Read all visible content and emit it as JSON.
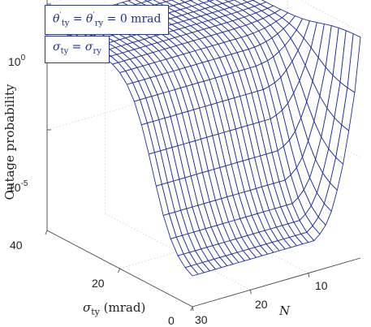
{
  "chart_data": {
    "type": "surface",
    "title": "",
    "annotations": [
      "θ′ty = θ′ry = 0 mrad",
      "σty = σry"
    ],
    "xlabel": "σty (mrad)",
    "ylabel": "N",
    "zlabel": "Outage probability",
    "x_ticks": [
      "0",
      "20",
      "40"
    ],
    "y_ticks": [
      "10",
      "20",
      "30"
    ],
    "z_ticks": [
      "10^0",
      "10^-5"
    ],
    "xlim": [
      0,
      40
    ],
    "ylim": [
      1,
      30
    ],
    "zlim": [
      1e-09,
      1
    ],
    "zscale": "log",
    "grid": true,
    "mesh_color": "#1f2f9a",
    "sigma_values": [
      0,
      2,
      4,
      6,
      8,
      10,
      12,
      14,
      16,
      18,
      20,
      22,
      24,
      26,
      28,
      30,
      32,
      34,
      36,
      38,
      40
    ],
    "N_values": [
      1,
      2,
      3,
      4,
      5,
      6,
      7,
      8,
      9,
      10,
      11,
      12,
      13,
      14,
      15,
      16,
      17,
      18,
      19,
      20,
      21,
      22,
      23,
      24,
      25,
      26,
      27,
      28,
      29,
      30
    ],
    "log10_outage_at_sigma_0": [
      -0.2,
      -2.4,
      -3.9,
      -5.2,
      -6.2,
      -7.0,
      -7.5,
      -7.8,
      -8.0,
      -8.0,
      -8.0,
      -8.0,
      -8.0,
      -8.0,
      -8.0,
      -8.0,
      -8.0,
      -8.0,
      -8.0,
      -8.0,
      -8.0,
      -8.0,
      -8.0,
      -8.0,
      -8.0,
      -8.0,
      -8.0,
      -8.0,
      -8.0,
      -8.0
    ],
    "log10_outage_at_sigma_40": [
      -0.8,
      -0.8,
      -0.8,
      -0.8,
      -0.8,
      -0.8,
      -0.8,
      -0.8,
      -0.8,
      -0.8,
      -0.8,
      -0.8,
      -0.8,
      -0.8,
      -0.8,
      -0.8,
      -0.8,
      -0.8,
      -0.8,
      -0.8,
      -0.8,
      -0.8,
      -0.8,
      -0.8,
      -0.8,
      -0.8,
      -0.8,
      -0.8,
      -0.8,
      -0.8
    ]
  }
}
